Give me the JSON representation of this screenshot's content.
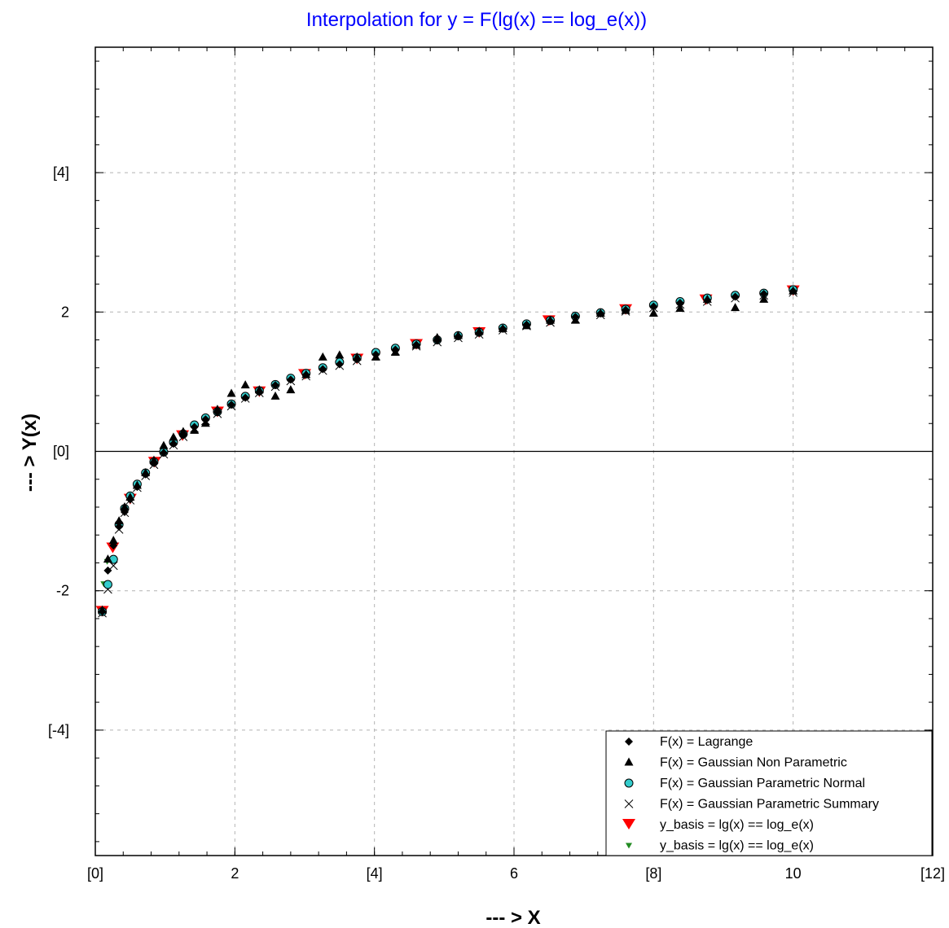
{
  "chart_data": {
    "type": "scatter",
    "title": "Interpolation for y = F(lg(x) == log_e(x))",
    "xlabel": "--- > X",
    "ylabel": "--- > Y(x)",
    "xlim": [
      0,
      12
    ],
    "ylim": [
      -5.8,
      5.8
    ],
    "x_ticks": [
      {
        "value": 0,
        "label": "[0]"
      },
      {
        "value": 2,
        "label": "2"
      },
      {
        "value": 4,
        "label": "[4]"
      },
      {
        "value": 6,
        "label": "6"
      },
      {
        "value": 8,
        "label": "[8]"
      },
      {
        "value": 10,
        "label": "10"
      },
      {
        "value": 12,
        "label": "[12]"
      }
    ],
    "y_ticks": [
      {
        "value": 4,
        "label": "[4]"
      },
      {
        "value": 2,
        "label": "2"
      },
      {
        "value": 0,
        "label": "[0]"
      },
      {
        "value": -2,
        "label": "-2"
      },
      {
        "value": -4,
        "label": "[-4]"
      }
    ],
    "grid": true,
    "legend_position": "bottom-right",
    "series": [
      {
        "name": "F(x) = Lagrange",
        "marker": "diamond",
        "color": "#000000",
        "x": [
          0.1,
          0.18,
          0.26,
          0.34,
          0.42,
          0.5,
          0.6,
          0.72,
          0.84,
          0.98,
          1.12,
          1.26,
          1.42,
          1.58,
          1.75,
          1.95,
          2.15,
          2.35,
          2.58,
          2.8,
          3.02,
          3.26,
          3.5,
          3.75,
          4.02,
          4.3,
          4.6,
          4.9,
          5.2,
          5.5,
          5.84,
          6.18,
          6.52,
          6.88,
          7.24,
          7.6,
          8.0,
          8.38,
          8.77,
          9.17,
          9.58,
          10.0
        ],
        "y": [
          -2.3,
          -1.71,
          -1.35,
          -1.08,
          -0.87,
          -0.69,
          -0.51,
          -0.33,
          -0.17,
          -0.02,
          0.11,
          0.23,
          0.35,
          0.46,
          0.56,
          0.67,
          0.77,
          0.85,
          0.95,
          1.03,
          1.1,
          1.18,
          1.25,
          1.32,
          1.39,
          1.46,
          1.53,
          1.59,
          1.65,
          1.7,
          1.76,
          1.82,
          1.87,
          1.93,
          1.98,
          2.03,
          2.08,
          2.13,
          2.17,
          2.22,
          2.26,
          2.3
        ]
      },
      {
        "name": "F(x) = Gaussian Non Parametric",
        "marker": "triangle",
        "color": "#000000",
        "x": [
          0.1,
          0.18,
          0.26,
          0.34,
          0.42,
          0.5,
          0.6,
          0.72,
          0.84,
          0.98,
          1.12,
          1.26,
          1.42,
          1.58,
          1.75,
          1.95,
          2.15,
          2.35,
          2.58,
          2.8,
          3.02,
          3.26,
          3.5,
          3.75,
          4.02,
          4.3,
          4.6,
          4.9,
          5.2,
          5.5,
          5.84,
          6.18,
          6.52,
          6.88,
          7.24,
          7.6,
          8.0,
          8.38,
          8.77,
          9.17,
          9.58,
          10.0
        ],
        "y": [
          -2.28,
          -1.55,
          -1.28,
          -1.0,
          -0.8,
          -0.66,
          -0.49,
          -0.31,
          -0.13,
          0.08,
          0.2,
          0.28,
          0.3,
          0.4,
          0.6,
          0.83,
          0.95,
          0.88,
          0.79,
          0.88,
          1.1,
          1.35,
          1.38,
          1.35,
          1.35,
          1.42,
          1.52,
          1.63,
          1.66,
          1.72,
          1.76,
          1.8,
          1.88,
          1.88,
          1.98,
          2.02,
          1.98,
          2.05,
          2.18,
          2.06,
          2.18,
          2.3
        ]
      },
      {
        "name": "F(x) = Gaussian Parametric Normal",
        "marker": "circle",
        "color": "#33cccc",
        "x": [
          0.1,
          0.18,
          0.26,
          0.34,
          0.42,
          0.5,
          0.6,
          0.72,
          0.84,
          0.98,
          1.12,
          1.26,
          1.42,
          1.58,
          1.75,
          1.95,
          2.15,
          2.35,
          2.58,
          2.8,
          3.02,
          3.26,
          3.5,
          3.75,
          4.02,
          4.3,
          4.6,
          4.9,
          5.2,
          5.5,
          5.84,
          6.18,
          6.52,
          6.88,
          7.24,
          7.6,
          8.0,
          8.38,
          8.77,
          9.17,
          9.58,
          10.0
        ],
        "y": [
          -2.3,
          -1.91,
          -1.55,
          -1.05,
          -0.82,
          -0.64,
          -0.47,
          -0.31,
          -0.15,
          -0.01,
          0.13,
          0.25,
          0.38,
          0.48,
          0.57,
          0.68,
          0.79,
          0.87,
          0.96,
          1.05,
          1.12,
          1.2,
          1.28,
          1.34,
          1.42,
          1.48,
          1.54,
          1.6,
          1.66,
          1.71,
          1.77,
          1.83,
          1.88,
          1.94,
          1.99,
          2.04,
          2.1,
          2.15,
          2.2,
          2.24,
          2.27,
          2.32
        ]
      },
      {
        "name": "F(x) = Gaussian Parametric Summary",
        "marker": "x",
        "color": "#000000",
        "x": [
          0.1,
          0.18,
          0.26,
          0.34,
          0.42,
          0.5,
          0.6,
          0.72,
          0.84,
          0.98,
          1.12,
          1.26,
          1.42,
          1.58,
          1.75,
          1.95,
          2.15,
          2.35,
          2.58,
          2.8,
          3.02,
          3.26,
          3.5,
          3.75,
          4.02,
          4.3,
          4.6,
          4.9,
          5.2,
          5.5,
          5.84,
          6.18,
          6.52,
          6.88,
          7.24,
          7.6,
          8.0,
          8.38,
          8.77,
          9.17,
          9.58,
          10.0
        ],
        "y": [
          -2.32,
          -1.98,
          -1.64,
          -1.12,
          -0.88,
          -0.7,
          -0.52,
          -0.35,
          -0.19,
          -0.04,
          0.09,
          0.21,
          0.33,
          0.44,
          0.54,
          0.65,
          0.76,
          0.84,
          0.93,
          1.01,
          1.08,
          1.16,
          1.23,
          1.3,
          1.37,
          1.44,
          1.51,
          1.57,
          1.63,
          1.68,
          1.74,
          1.8,
          1.85,
          1.9,
          1.96,
          2.01,
          2.06,
          2.11,
          2.15,
          2.2,
          2.24,
          2.28
        ]
      },
      {
        "name": "y_basis = lg(x) == log_e(x)",
        "marker": "triangle-down",
        "color": "#ff0000",
        "x": [
          0.1,
          0.25,
          0.5,
          0.85,
          1.25,
          1.75,
          2.35,
          3.0,
          3.75,
          4.6,
          5.5,
          6.5,
          7.6,
          8.75,
          10.0
        ],
        "y": [
          -2.3,
          -1.39,
          -0.69,
          -0.16,
          0.22,
          0.56,
          0.85,
          1.1,
          1.32,
          1.53,
          1.7,
          1.87,
          2.03,
          2.17,
          2.3
        ]
      },
      {
        "name": "y_basis = lg(x) == log_e(x)",
        "marker": "triangle-down-small",
        "color": "#228b22",
        "x": [
          0.12,
          0.17
        ],
        "y": [
          -1.9,
          -1.58
        ]
      }
    ]
  }
}
